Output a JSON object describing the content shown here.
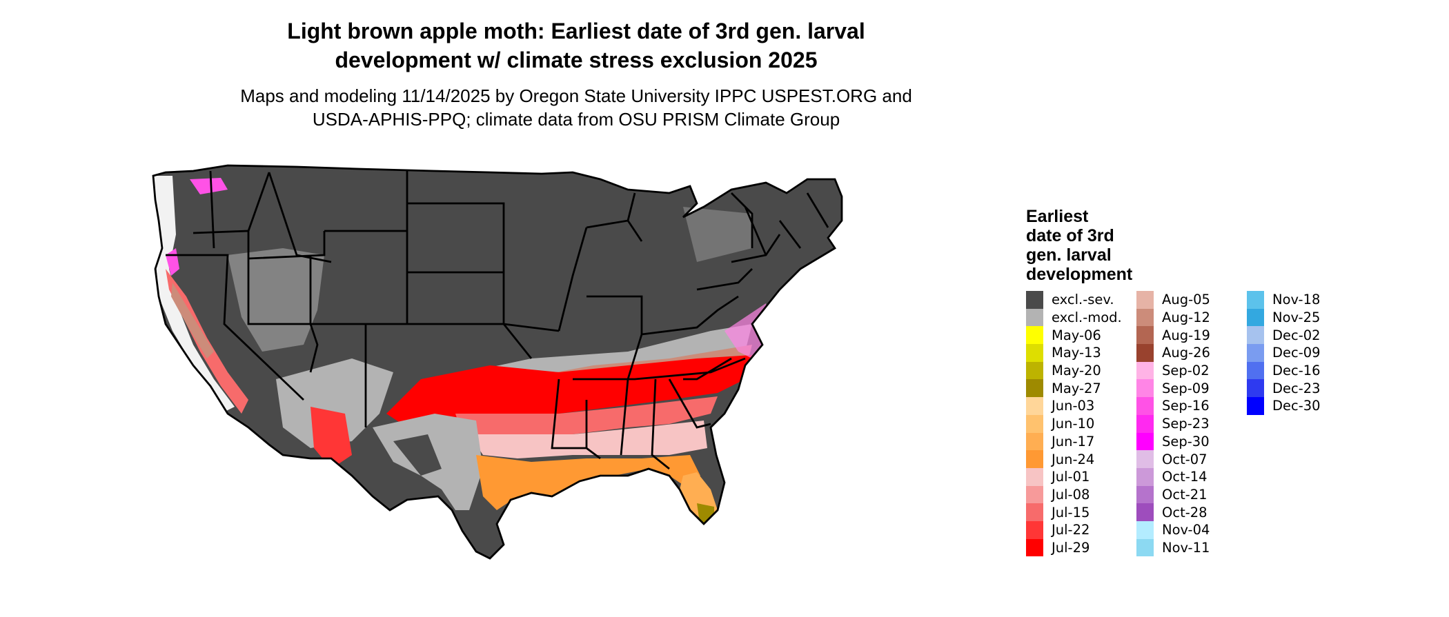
{
  "title": {
    "line1": "Light brown apple moth: Earliest date of 3rd gen. larval",
    "line2": "development w/ climate stress exclusion 2025"
  },
  "subtitle": {
    "line1": "Maps and modeling 11/14/2025 by Oregon State University IPPC USPEST.ORG and",
    "line2": "USDA-APHIS-PPQ; climate data from OSU PRISM Climate Group"
  },
  "legend": {
    "title_lines": [
      "Earliest",
      "date of 3rd",
      "gen. larval",
      "development"
    ],
    "columns": [
      [
        {
          "label": "excl.-sev.",
          "color": "#4a4a4a"
        },
        {
          "label": "excl.-mod.",
          "color": "#b3b3b3"
        },
        {
          "label": "May-06",
          "color": "#ffff00"
        },
        {
          "label": "May-13",
          "color": "#dede00"
        },
        {
          "label": "May-20",
          "color": "#bdb300"
        },
        {
          "label": "May-27",
          "color": "#9e8a00"
        },
        {
          "label": "Jun-03",
          "color": "#ffd699"
        },
        {
          "label": "Jun-10",
          "color": "#ffc26e"
        },
        {
          "label": "Jun-17",
          "color": "#ffae52"
        },
        {
          "label": "Jun-24",
          "color": "#ff9933"
        },
        {
          "label": "Jul-01",
          "color": "#f7c4c4"
        },
        {
          "label": "Jul-08",
          "color": "#f79a9a"
        },
        {
          "label": "Jul-15",
          "color": "#f76b6b"
        },
        {
          "label": "Jul-22",
          "color": "#ff3636"
        },
        {
          "label": "Jul-29",
          "color": "#ff0000"
        }
      ],
      [
        {
          "label": "Aug-05",
          "color": "#e6b3a6"
        },
        {
          "label": "Aug-12",
          "color": "#cc8c7a"
        },
        {
          "label": "Aug-19",
          "color": "#b36652"
        },
        {
          "label": "Aug-26",
          "color": "#99422e"
        },
        {
          "label": "Sep-02",
          "color": "#ffb3e6"
        },
        {
          "label": "Sep-09",
          "color": "#ff85e6"
        },
        {
          "label": "Sep-16",
          "color": "#ff52e6"
        },
        {
          "label": "Sep-23",
          "color": "#ff29f0"
        },
        {
          "label": "Sep-30",
          "color": "#ff00ff"
        },
        {
          "label": "Oct-07",
          "color": "#e0bde6"
        },
        {
          "label": "Oct-14",
          "color": "#cc99d9"
        },
        {
          "label": "Oct-21",
          "color": "#b573cc"
        },
        {
          "label": "Oct-28",
          "color": "#9e4dbd"
        },
        {
          "label": "Nov-04",
          "color": "#b3ecff"
        },
        {
          "label": "Nov-11",
          "color": "#8cd9f2"
        }
      ],
      [
        {
          "label": "Nov-18",
          "color": "#5cc2eb"
        },
        {
          "label": "Nov-25",
          "color": "#33a8e0"
        },
        {
          "label": "Dec-02",
          "color": "#a6c2ee"
        },
        {
          "label": "Dec-09",
          "color": "#7a9cf0"
        },
        {
          "label": "Dec-16",
          "color": "#5070f0"
        },
        {
          "label": "Dec-23",
          "color": "#2e3af0"
        },
        {
          "label": "Dec-30",
          "color": "#0000ff"
        }
      ]
    ]
  }
}
